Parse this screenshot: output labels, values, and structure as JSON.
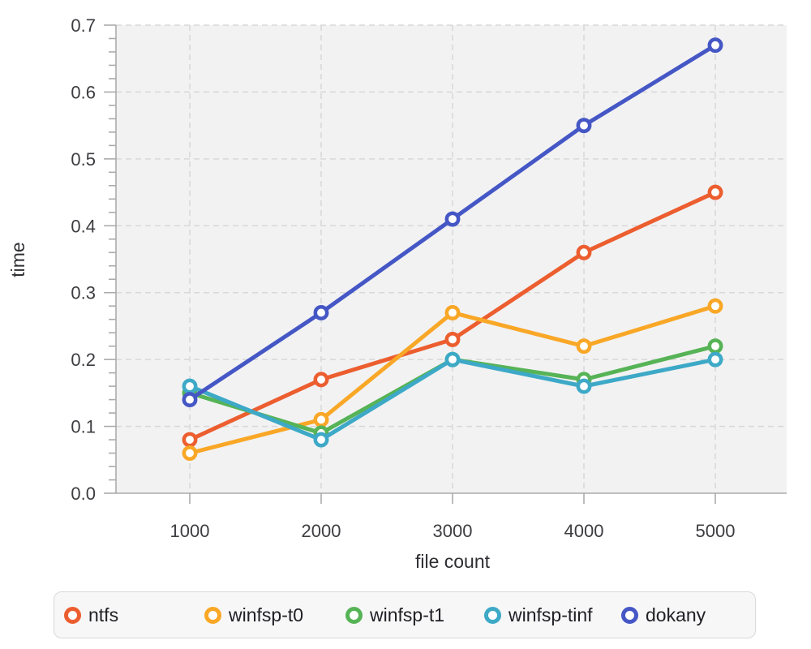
{
  "figure": {
    "background": "#ffffff",
    "plot_bg": "#f2f2f3",
    "grid_color": "#d8d8d8",
    "axis_color": "#ababab",
    "label_color": "#3d3d41"
  },
  "chart_data": {
    "type": "line",
    "title": "",
    "xlabel": "file count",
    "ylabel": "time",
    "x": [
      1000,
      2000,
      3000,
      4000,
      5000
    ],
    "xticks": [
      "1000",
      "2000",
      "3000",
      "4000",
      "5000"
    ],
    "yticks": [
      "0.0",
      "0.1",
      "0.2",
      "0.3",
      "0.4",
      "0.5",
      "0.6",
      "0.7"
    ],
    "y_minor_step": 0.02,
    "xlim": [
      440,
      5550
    ],
    "ylim": [
      0,
      0.7
    ],
    "grid": "dashed",
    "legend_position": "bottom",
    "marker": "open-circle",
    "series": [
      {
        "name": "ntfs",
        "color": "#ec5e2f",
        "values": [
          0.08,
          0.17,
          0.23,
          0.36,
          0.45
        ]
      },
      {
        "name": "winfsp-t0",
        "color": "#f9a726",
        "values": [
          0.06,
          0.11,
          0.27,
          0.22,
          0.28
        ]
      },
      {
        "name": "winfsp-t1",
        "color": "#56b356",
        "values": [
          0.15,
          0.09,
          0.2,
          0.17,
          0.22
        ]
      },
      {
        "name": "winfsp-tinf",
        "color": "#3da9c7",
        "values": [
          0.16,
          0.08,
          0.2,
          0.16,
          0.2
        ]
      },
      {
        "name": "dokany",
        "color": "#4557c5",
        "values": [
          0.14,
          0.27,
          0.41,
          0.55,
          0.67
        ]
      }
    ]
  }
}
